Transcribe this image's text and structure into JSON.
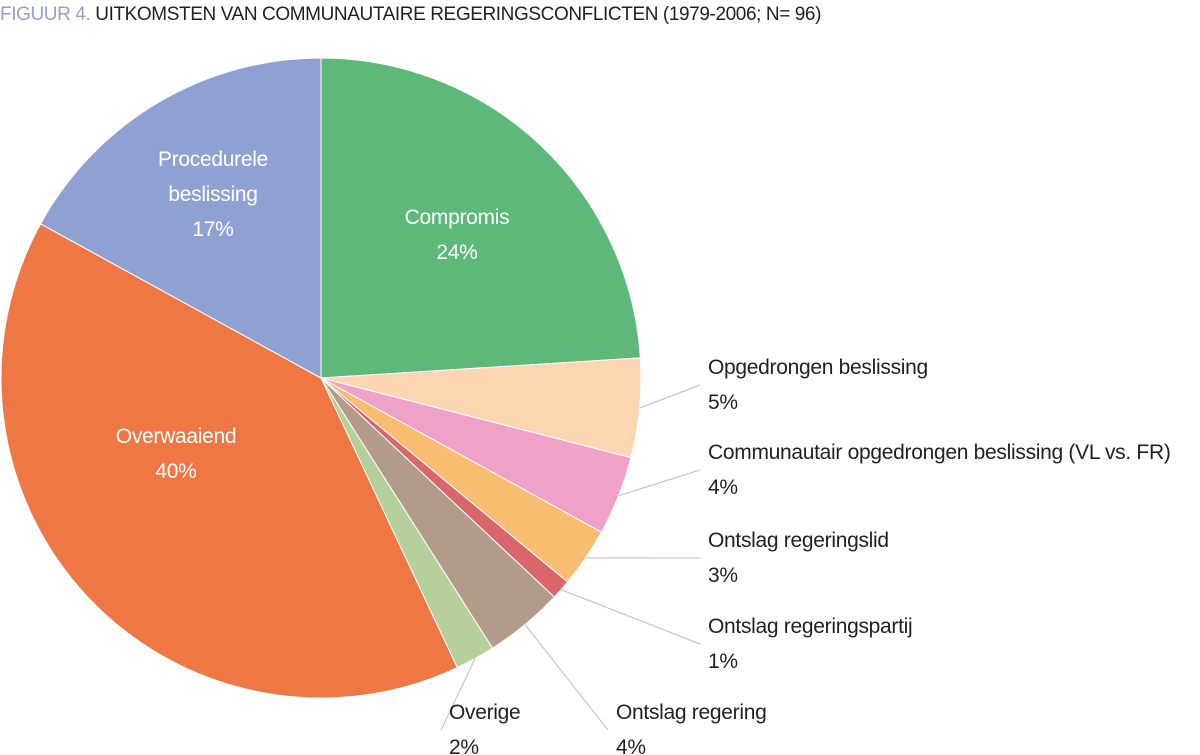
{
  "chart_data": {
    "type": "pie",
    "figure_label": "FIGUUR 4.",
    "title": "UITKOMSTEN VAN COMMUNAUTAIRE REGERINGSCONFLICTEN (1979-2006; N= 96)",
    "categories": [
      "Compromis",
      "Opgedrongen beslissing",
      "Communautair opgedrongen beslissing (VL vs. FR)",
      "Ontslag regeringslid",
      "Ontslag regeringspartij",
      "Ontslag regering",
      "Overige",
      "Overwaaiend",
      "Procedurele beslissing"
    ],
    "values": [
      24,
      5,
      4,
      3,
      1,
      4,
      2,
      40,
      17
    ],
    "value_labels": [
      "24%",
      "5%",
      "4%",
      "3%",
      "1%",
      "4%",
      "2%",
      "40%",
      "17%"
    ],
    "colors": [
      "#5eb87a",
      "#fbd6b1",
      "#f0a1c9",
      "#f9bd72",
      "#d9666b",
      "#b39b8c",
      "#b6d09b",
      "#ef7744",
      "#8fa1d2"
    ]
  }
}
